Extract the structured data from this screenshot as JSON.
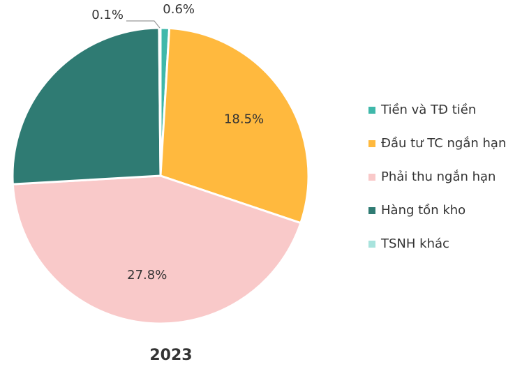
{
  "chart_data": {
    "type": "pie",
    "title": "2023",
    "categories": [
      "Tiền và TĐ tiền",
      "Đầu tư TC ngắn hạn",
      "Phải thu ngắn hạn",
      "Hàng tồn kho",
      "TSNH khác"
    ],
    "values": [
      0.6,
      18.5,
      27.8,
      16.3,
      0.1
    ],
    "value_labels": [
      "0.6%",
      "18.5%",
      "27.8%",
      null,
      "0.1%"
    ],
    "colors": [
      "#3fb8aa",
      "#ffb93e",
      "#f9c9c9",
      "#2f7b73",
      "#a8e3dd"
    ],
    "legend": "right"
  }
}
